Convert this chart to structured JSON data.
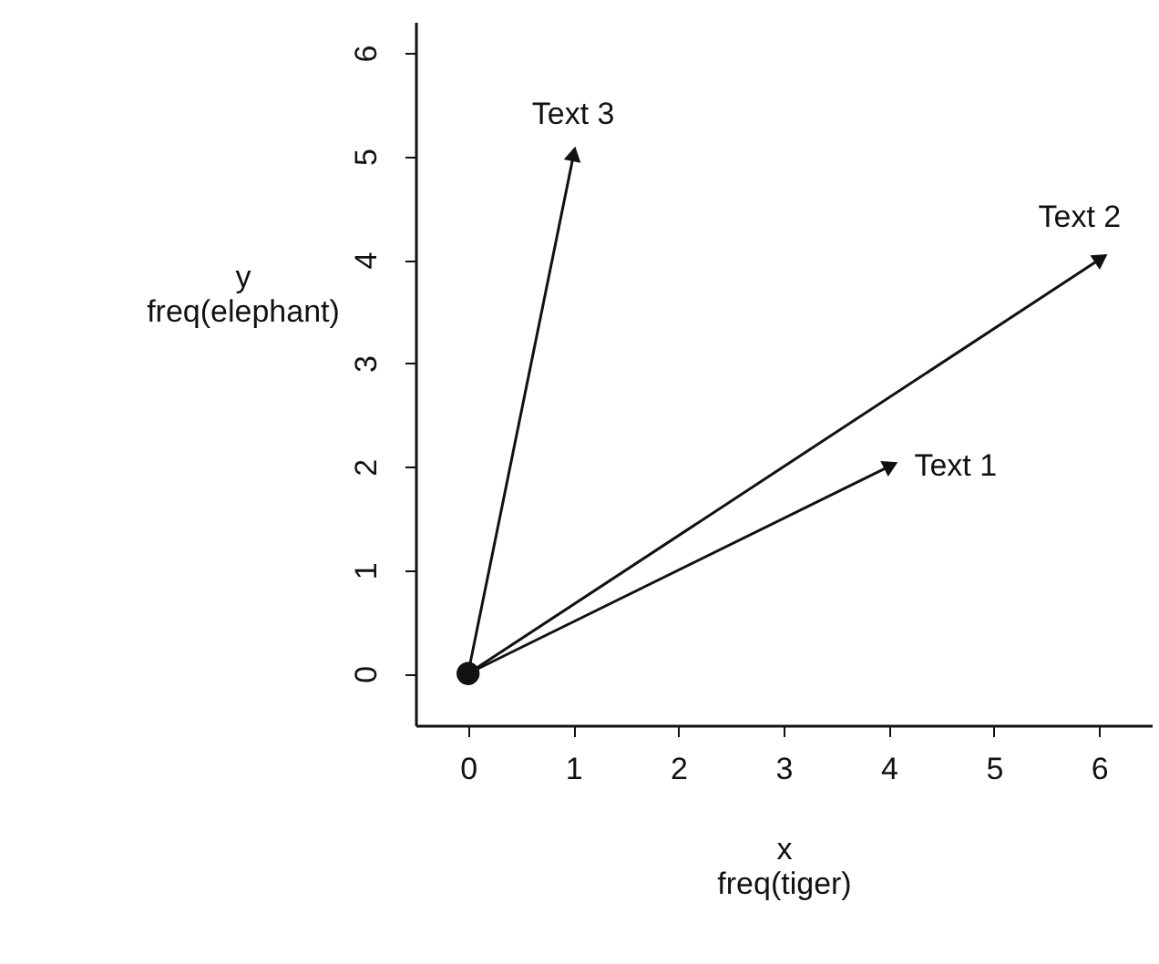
{
  "chart_data": {
    "type": "line",
    "xlabel": "x\nfreq(tiger)",
    "ylabel": "y\nfreq(elephant)",
    "xlim": [
      -0.5,
      6.5
    ],
    "ylim": [
      -0.5,
      6.3
    ],
    "xticks": [
      0,
      1,
      2,
      3,
      4,
      5,
      6
    ],
    "yticks": [
      0,
      1,
      2,
      3,
      4,
      5,
      6
    ],
    "grid": false,
    "marker": "triangle",
    "series": [
      {
        "name": "Text 1",
        "color": "#111111",
        "x": [
          0,
          4
        ],
        "values": [
          0,
          2
        ]
      },
      {
        "name": "Text 2",
        "color": "#111111",
        "x": [
          0,
          6
        ],
        "values": [
          0,
          4
        ]
      },
      {
        "name": "Text 3",
        "color": "#111111",
        "x": [
          0,
          1
        ],
        "values": [
          0,
          5
        ]
      },
      {
        "type": "scatter",
        "marker": "circle",
        "color": "#111111",
        "x": [
          0
        ],
        "values": [
          0
        ]
      }
    ]
  }
}
